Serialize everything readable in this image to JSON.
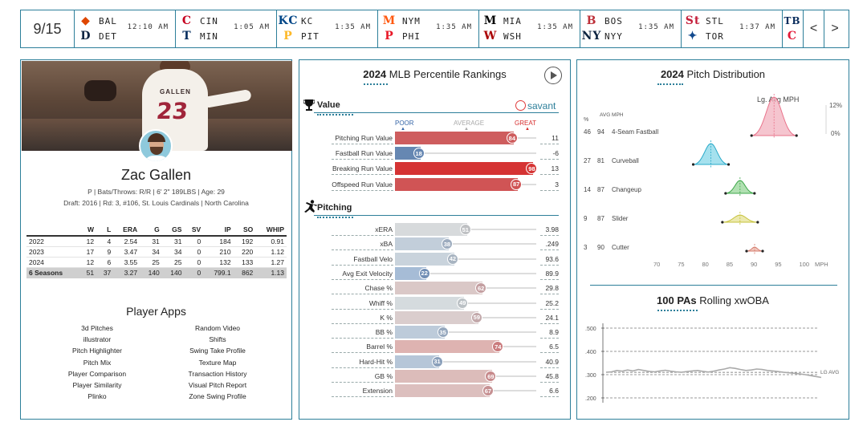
{
  "scoreboard": {
    "date": "9/15",
    "games": [
      {
        "away": "BAL",
        "home": "DET",
        "time": "12:10 AM",
        "away_logo": "bal-logo",
        "home_logo": "det-logo",
        "away_glyph": "◆",
        "home_glyph": "D",
        "away_color": "#df4601",
        "home_color": "#0c2340"
      },
      {
        "away": "CIN",
        "home": "MIN",
        "time": "1:05 AM",
        "away_logo": "cin-logo",
        "home_logo": "min-logo",
        "away_glyph": "C",
        "home_glyph": "T",
        "away_color": "#c6011f",
        "home_color": "#002b5c"
      },
      {
        "away": "KC",
        "home": "PIT",
        "time": "1:35 AM",
        "away_logo": "kc-logo",
        "home_logo": "pit-logo",
        "away_glyph": "KC",
        "home_glyph": "P",
        "away_color": "#004687",
        "home_color": "#fdb827"
      },
      {
        "away": "NYM",
        "home": "PHI",
        "time": "1:35 AM",
        "away_logo": "nym-logo",
        "home_logo": "phi-logo",
        "away_glyph": "M",
        "home_glyph": "P",
        "away_color": "#ff5910",
        "home_color": "#e81828"
      },
      {
        "away": "MIA",
        "home": "WSH",
        "time": "1:35 AM",
        "away_logo": "mia-logo",
        "home_logo": "wsh-logo",
        "away_glyph": "M",
        "home_glyph": "W",
        "away_color": "#000000",
        "home_color": "#ab0003"
      },
      {
        "away": "BOS",
        "home": "NYY",
        "time": "1:35 AM",
        "away_logo": "bos-logo",
        "home_logo": "nyy-logo",
        "away_glyph": "B",
        "home_glyph": "NY",
        "away_color": "#bd3039",
        "home_color": "#0c2340"
      },
      {
        "away": "STL",
        "home": "TOR",
        "time": "1:37 AM",
        "away_logo": "stl-logo",
        "home_logo": "tor-logo",
        "away_glyph": "St",
        "home_glyph": "✦",
        "away_color": "#c41e3a",
        "home_color": "#134a8e"
      }
    ],
    "partial": {
      "away_glyph": "TB",
      "home_glyph": "C",
      "away_color": "#092c5c",
      "home_color": "#e31937"
    },
    "prev_label": "<",
    "next_label": ">"
  },
  "player": {
    "name": "Zac Gallen",
    "jersey_name": "GALLEN",
    "jersey_number": "23",
    "info": "P | Bats/Throws: R/R | 6' 2\" 189LBS | Age: 29",
    "draft": "Draft: 2016 | Rd: 3, #106, St. Louis Cardinals | North Carolina",
    "stats_headers": [
      "",
      "W",
      "L",
      "ERA",
      "G",
      "GS",
      "SV",
      "IP",
      "SO",
      "WHIP"
    ],
    "stats_rows": [
      [
        "2022",
        "12",
        "4",
        "2.54",
        "31",
        "31",
        "0",
        "184",
        "192",
        "0.91"
      ],
      [
        "2023",
        "17",
        "9",
        "3.47",
        "34",
        "34",
        "0",
        "210",
        "220",
        "1.12"
      ],
      [
        "2024",
        "12",
        "6",
        "3.55",
        "25",
        "25",
        "0",
        "132",
        "133",
        "1.27"
      ]
    ],
    "stats_total": [
      "6 Seasons",
      "51",
      "37",
      "3.27",
      "140",
      "140",
      "0",
      "799.1",
      "862",
      "1.13"
    ],
    "apps_title": "Player Apps",
    "apps": [
      "3d Pitches",
      "Random Video",
      "illustrator",
      "Shifts",
      "Pitch Highlighter",
      "Swing Take Profile",
      "Pitch Mix",
      "Texture Map",
      "Player Comparison",
      "Transaction History",
      "Player Similarity",
      "Visual Pitch Report",
      "Plinko",
      "Zone Swing Profile"
    ]
  },
  "rankings": {
    "title_year": "2024",
    "title_rest": "MLB Percentile Rankings",
    "brand": "savant",
    "scale": {
      "poor": "POOR",
      "average": "AVERAGE",
      "great": "GREAT"
    },
    "value_title": "Value",
    "pitching_title": "Pitching",
    "value_metrics": [
      {
        "label": "Pitching Run Value",
        "pct": 84,
        "value": "11"
      },
      {
        "label": "Fastball Run Value",
        "pct": 18,
        "value": "-6"
      },
      {
        "label": "Breaking Run Value",
        "pct": 98,
        "value": "13"
      },
      {
        "label": "Offspeed Run Value",
        "pct": 87,
        "value": "3"
      }
    ],
    "pitching_metrics": [
      {
        "label": "xERA",
        "pct": 51,
        "value": "3.98"
      },
      {
        "label": "xBA",
        "pct": 38,
        "value": ".249"
      },
      {
        "label": "Fastball Velo",
        "pct": 42,
        "value": "93.6"
      },
      {
        "label": "Avg Exit Velocity",
        "pct": 22,
        "value": "89.9"
      },
      {
        "label": "Chase %",
        "pct": 62,
        "value": "29.8"
      },
      {
        "label": "Whiff %",
        "pct": 49,
        "value": "25.2"
      },
      {
        "label": "K %",
        "pct": 59,
        "value": "24.1"
      },
      {
        "label": "BB %",
        "pct": 35,
        "value": "8.9"
      },
      {
        "label": "Barrel %",
        "pct": 74,
        "value": "6.5"
      },
      {
        "label": "Hard-Hit %",
        "pct": 31,
        "value": "40.9"
      },
      {
        "label": "GB %",
        "pct": 69,
        "value": "45.8"
      },
      {
        "label": "Extension",
        "pct": 67,
        "value": "6.6"
      }
    ]
  },
  "pitch_distribution": {
    "title_year": "2024",
    "title_rest": "Pitch Distribution",
    "lg_label": "Lg. Avg MPH",
    "col_pct": "%",
    "col_avg": "AVG MPH",
    "pct_top": "12%",
    "pct_bottom": "0%",
    "x_ticks": [
      "70",
      "75",
      "80",
      "85",
      "90",
      "95",
      "100"
    ],
    "x_unit": "MPH",
    "pitches": [
      {
        "name": "4-Seam Fastball",
        "pct": "46",
        "mph": "94",
        "color": "#e9728a",
        "fill": "#f3b7c3"
      },
      {
        "name": "Curveball",
        "pct": "27",
        "mph": "81",
        "color": "#27a9c8",
        "fill": "#8fd9ea"
      },
      {
        "name": "Changeup",
        "pct": "14",
        "mph": "87",
        "color": "#3ea84a",
        "fill": "#9ed89f"
      },
      {
        "name": "Slider",
        "pct": "9",
        "mph": "87",
        "color": "#c6c23b",
        "fill": "#e7e49a"
      },
      {
        "name": "Cutter",
        "pct": "3",
        "mph": "90",
        "color": "#d47b6c",
        "fill": "#eeb9ae"
      }
    ]
  },
  "xwoba": {
    "title_bold": "100 PAs",
    "title_rest": "Rolling xwOBA",
    "y_ticks": [
      ".500",
      ".400",
      ".300",
      ".200"
    ],
    "lg_avg_label": "LG AVG",
    "lg_avg": 0.31,
    "values": [
      0.31,
      0.312,
      0.318,
      0.315,
      0.32,
      0.316,
      0.322,
      0.318,
      0.314,
      0.312,
      0.316,
      0.319,
      0.315,
      0.312,
      0.31,
      0.313,
      0.316,
      0.318,
      0.314,
      0.311,
      0.315,
      0.32,
      0.324,
      0.33,
      0.327,
      0.322,
      0.318,
      0.32,
      0.324,
      0.322,
      0.318,
      0.316,
      0.313,
      0.31,
      0.308,
      0.306,
      0.303,
      0.3,
      0.296,
      0.292,
      0.288
    ]
  },
  "colors": {
    "accent": "#2d7f9a",
    "poor": "#3565a7",
    "great": "#d62d2d"
  }
}
